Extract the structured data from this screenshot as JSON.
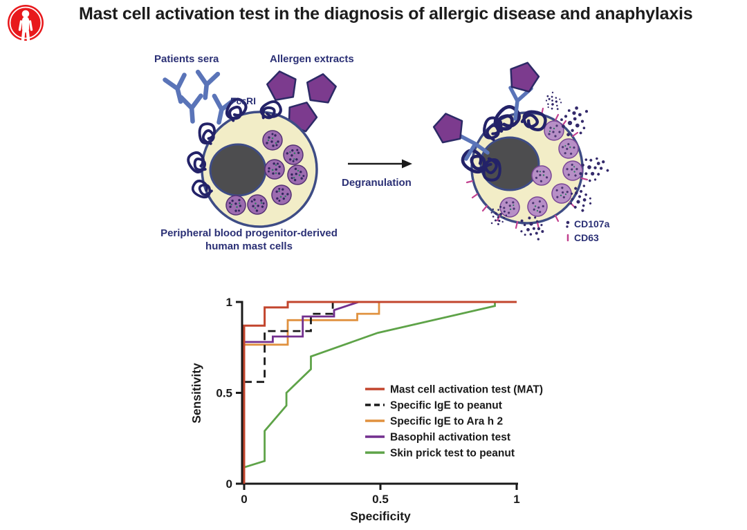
{
  "header": {
    "title": "Mast cell activation test in the diagnosis of allergic disease and anaphylaxis",
    "logo": {
      "shape": "person-in-red-circle",
      "color": "#e8191c"
    }
  },
  "diagram": {
    "labels": {
      "patients_sera": "Patients sera",
      "allergen_extracts": "Allergen extracts",
      "fceri": "FcεRI",
      "arrow_label": "Degranulation",
      "cell_caption_line1": "Peripheral blood progenitor-derived",
      "cell_caption_line2": "human mast cells",
      "cd107a": "CD107a",
      "cd63": "CD63"
    },
    "colors": {
      "antibody_blue": "#5a74b8",
      "allergen_purple": "#7c3b8e",
      "cell_fill": "#f2edc7",
      "cell_border": "#3e4c85",
      "nucleus_fill": "#4d4d4f",
      "granule_fill": "#9d6cb0",
      "receptor_navy": "#232268",
      "released_dots": "#342a6b",
      "cd63_pink": "#c2418f",
      "label_navy": "#2b3075"
    }
  },
  "chart_data": {
    "type": "line",
    "title": "",
    "xlabel": "Specificity",
    "ylabel": "Sensitivity",
    "xlim": [
      0,
      1
    ],
    "ylim": [
      0,
      1
    ],
    "xticks": [
      0,
      0.5,
      1
    ],
    "yticks": [
      0,
      0.5,
      1
    ],
    "grid": false,
    "legend_position": "inside-right",
    "series": [
      {
        "name": "Mast cell activation test (MAT)",
        "color": "#c2452d",
        "dash": "solid",
        "points": [
          [
            0,
            0
          ],
          [
            0,
            0.87
          ],
          [
            0.075,
            0.87
          ],
          [
            0.075,
            0.97
          ],
          [
            0.16,
            0.97
          ],
          [
            0.16,
            1
          ],
          [
            1,
            1
          ]
        ]
      },
      {
        "name": "Specific IgE to peanut",
        "color": "#1a1a1a",
        "dash": "dashed",
        "points": [
          [
            0,
            0.56
          ],
          [
            0.075,
            0.56
          ],
          [
            0.075,
            0.84
          ],
          [
            0.245,
            0.84
          ],
          [
            0.245,
            0.935
          ],
          [
            0.325,
            0.935
          ],
          [
            0.325,
            1
          ],
          [
            1,
            1
          ]
        ]
      },
      {
        "name": "Specific IgE to Ara h 2",
        "color": "#e0913f",
        "dash": "solid",
        "points": [
          [
            0,
            0.765
          ],
          [
            0.16,
            0.765
          ],
          [
            0.16,
            0.9
          ],
          [
            0.415,
            0.9
          ],
          [
            0.415,
            0.935
          ],
          [
            0.495,
            0.935
          ],
          [
            0.495,
            1
          ],
          [
            1,
            1
          ]
        ]
      },
      {
        "name": "Basophil activation test",
        "color": "#722f8e",
        "dash": "solid",
        "points": [
          [
            0,
            0.78
          ],
          [
            0.105,
            0.78
          ],
          [
            0.105,
            0.81
          ],
          [
            0.215,
            0.81
          ],
          [
            0.215,
            0.92
          ],
          [
            0.33,
            0.92
          ],
          [
            0.33,
            0.955
          ],
          [
            0.42,
            1
          ],
          [
            1,
            1
          ]
        ]
      },
      {
        "name": "Skin prick test to peanut",
        "color": "#5ea348",
        "dash": "solid",
        "points": [
          [
            0,
            0.09
          ],
          [
            0.075,
            0.125
          ],
          [
            0.075,
            0.29
          ],
          [
            0.155,
            0.43
          ],
          [
            0.155,
            0.5
          ],
          [
            0.245,
            0.63
          ],
          [
            0.245,
            0.7
          ],
          [
            0.49,
            0.83
          ],
          [
            0.92,
            0.978
          ],
          [
            0.92,
            1
          ],
          [
            1,
            1
          ]
        ]
      }
    ]
  }
}
